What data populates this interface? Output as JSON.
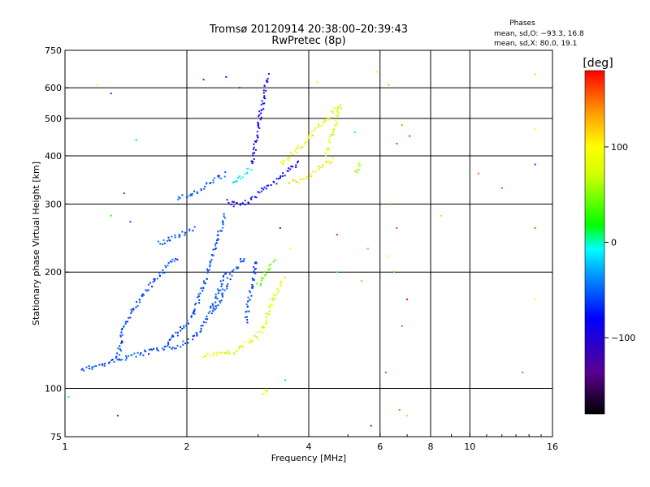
{
  "chart_data": {
    "type": "scatter",
    "title": "Tromsø 20120914 20:38:00–20:39:43",
    "subtitle": "RwPretec (8p)",
    "phase_info": {
      "heading": "Phases",
      "line_o": "mean, sd,O: −93.3, 16.8",
      "line_x": "mean, sd,X:  80.0, 19.1"
    },
    "xlabel": "Frequency [MHz]",
    "ylabel": "Stationary phase Virtual Height [km]",
    "x_scale": "log",
    "y_scale": "log",
    "xlim": [
      1,
      16
    ],
    "ylim": [
      75,
      750
    ],
    "x_ticks": [
      {
        "value": 1,
        "label": "1"
      },
      {
        "value": 2,
        "label": "2"
      },
      {
        "value": 4,
        "label": "4"
      },
      {
        "value": 6,
        "label": "6"
      },
      {
        "value": 8,
        "label": "8"
      },
      {
        "value": 10,
        "label": "10"
      },
      {
        "value": 16,
        "label": "16"
      }
    ],
    "y_ticks": [
      {
        "value": 75,
        "label": "75"
      },
      {
        "value": 100,
        "label": "100"
      },
      {
        "value": 200,
        "label": "200"
      },
      {
        "value": 300,
        "label": "300"
      },
      {
        "value": 400,
        "label": "400"
      },
      {
        "value": 500,
        "label": "500"
      },
      {
        "value": 600,
        "label": "600"
      },
      {
        "value": 750,
        "label": "750"
      }
    ],
    "x_major_grid": [
      2,
      4
    ],
    "x_minor_grid": [
      6,
      8,
      10
    ],
    "y_grid": [
      100,
      200,
      300,
      400,
      500,
      600
    ],
    "colorbar": {
      "label": "[deg]",
      "range": [
        -180,
        180
      ],
      "ticks": [
        {
          "value": 100,
          "label": "100"
        },
        {
          "value": 0,
          "label": "0"
        },
        {
          "value": -100,
          "label": "−100"
        }
      ]
    },
    "traces": [
      {
        "points": [
          [
            1.1,
            112
          ],
          [
            1.2,
            114
          ],
          [
            1.3,
            117
          ],
          [
            1.4,
            120
          ],
          [
            1.5,
            122
          ],
          [
            1.6,
            124
          ],
          [
            1.7,
            126
          ],
          [
            1.8,
            127
          ],
          [
            1.9,
            129
          ],
          [
            2.0,
            132
          ],
          [
            2.1,
            137
          ],
          [
            2.2,
            145
          ],
          [
            2.3,
            160
          ],
          [
            2.4,
            180
          ],
          [
            2.5,
            200
          ]
        ],
        "phase": -95
      },
      {
        "points": [
          [
            1.35,
            120
          ],
          [
            1.4,
            145
          ],
          [
            1.5,
            165
          ],
          [
            1.6,
            180
          ],
          [
            1.7,
            195
          ],
          [
            1.8,
            210
          ],
          [
            1.9,
            220
          ]
        ],
        "phase": -95
      },
      {
        "points": [
          [
            1.8,
            130
          ],
          [
            1.9,
            140
          ],
          [
            2.0,
            148
          ],
          [
            2.1,
            160
          ],
          [
            2.2,
            185
          ],
          [
            2.3,
            215
          ],
          [
            2.4,
            250
          ],
          [
            2.5,
            285
          ]
        ],
        "phase": -95
      },
      {
        "points": [
          [
            2.3,
            160
          ],
          [
            2.4,
            165
          ],
          [
            2.5,
            185
          ],
          [
            2.6,
            200
          ],
          [
            2.7,
            210
          ],
          [
            2.8,
            220
          ]
        ],
        "phase": -95
      },
      {
        "points": [
          [
            2.8,
            150
          ],
          [
            2.85,
            170
          ],
          [
            2.9,
            185
          ],
          [
            2.95,
            205
          ],
          [
            3.0,
            215
          ]
        ],
        "phase": -95
      },
      {
        "points": [
          [
            1.7,
            238
          ],
          [
            1.8,
            242
          ],
          [
            1.9,
            248
          ],
          [
            2.0,
            255
          ],
          [
            2.1,
            262
          ]
        ],
        "phase": -95
      },
      {
        "points": [
          [
            1.9,
            310
          ],
          [
            2.0,
            315
          ],
          [
            2.1,
            322
          ],
          [
            2.2,
            330
          ],
          [
            2.3,
            340
          ],
          [
            2.4,
            350
          ],
          [
            2.5,
            360
          ]
        ],
        "phase": -90
      },
      {
        "points": [
          [
            2.5,
            305
          ],
          [
            2.6,
            300
          ],
          [
            2.7,
            298
          ],
          [
            2.8,
            302
          ],
          [
            2.9,
            310
          ],
          [
            3.0,
            320
          ],
          [
            3.2,
            335
          ],
          [
            3.4,
            350
          ],
          [
            3.6,
            370
          ],
          [
            3.8,
            390
          ]
        ],
        "phase": -115
      },
      {
        "points": [
          [
            2.9,
            380
          ],
          [
            2.95,
            420
          ],
          [
            3.0,
            470
          ],
          [
            3.05,
            520
          ],
          [
            3.1,
            570
          ],
          [
            3.15,
            620
          ],
          [
            3.2,
            650
          ]
        ],
        "phase": -120
      },
      {
        "points": [
          [
            2.6,
            340
          ],
          [
            2.7,
            350
          ],
          [
            2.8,
            360
          ],
          [
            2.9,
            375
          ]
        ],
        "phase": -40
      },
      {
        "points": [
          [
            3.4,
            380
          ],
          [
            3.6,
            400
          ],
          [
            3.8,
            420
          ],
          [
            4.0,
            445
          ],
          [
            4.2,
            470
          ],
          [
            4.5,
            505
          ],
          [
            4.8,
            540
          ]
        ],
        "phase": 100
      },
      {
        "points": [
          [
            4.4,
            400
          ],
          [
            4.5,
            430
          ],
          [
            4.6,
            460
          ],
          [
            4.7,
            500
          ],
          [
            4.8,
            540
          ]
        ],
        "phase": 95
      },
      {
        "points": [
          [
            3.6,
            340
          ],
          [
            3.8,
            345
          ],
          [
            4.0,
            355
          ],
          [
            4.2,
            365
          ],
          [
            4.4,
            380
          ],
          [
            4.6,
            395
          ]
        ],
        "phase": 110
      },
      {
        "points": [
          [
            5.2,
            360
          ],
          [
            5.3,
            370
          ],
          [
            5.4,
            385
          ]
        ],
        "phase": 80
      },
      {
        "points": [
          [
            2.2,
            122
          ],
          [
            2.4,
            123
          ],
          [
            2.6,
            125
          ],
          [
            2.8,
            130
          ],
          [
            3.0,
            137
          ],
          [
            3.1,
            145
          ],
          [
            3.2,
            160
          ],
          [
            3.3,
            175
          ],
          [
            3.4,
            185
          ],
          [
            3.5,
            195
          ]
        ],
        "phase": 95
      },
      {
        "points": [
          [
            3.0,
            185
          ],
          [
            3.1,
            195
          ],
          [
            3.2,
            205
          ],
          [
            3.3,
            215
          ]
        ],
        "phase": 60
      },
      {
        "points": [
          [
            3.1,
            97
          ],
          [
            3.15,
            99
          ],
          [
            3.2,
            100
          ]
        ],
        "phase": 100
      }
    ],
    "scatter": [
      {
        "x": 1.2,
        "y": 610,
        "phase": 100
      },
      {
        "x": 1.3,
        "y": 580,
        "phase": -100
      },
      {
        "x": 1.5,
        "y": 440,
        "phase": 20
      },
      {
        "x": 1.4,
        "y": 320,
        "phase": -90
      },
      {
        "x": 1.3,
        "y": 280,
        "phase": 40
      },
      {
        "x": 1.45,
        "y": 270,
        "phase": -100
      },
      {
        "x": 2.2,
        "y": 630,
        "phase": -100
      },
      {
        "x": 2.5,
        "y": 640,
        "phase": -110
      },
      {
        "x": 2.7,
        "y": 600,
        "phase": -100
      },
      {
        "x": 3.4,
        "y": 260,
        "phase": -100
      },
      {
        "x": 3.6,
        "y": 230,
        "phase": 100
      },
      {
        "x": 4.2,
        "y": 620,
        "phase": 110
      },
      {
        "x": 5.9,
        "y": 660,
        "phase": 110
      },
      {
        "x": 6.3,
        "y": 610,
        "phase": 130
      },
      {
        "x": 6.8,
        "y": 480,
        "phase": 140
      },
      {
        "x": 7.1,
        "y": 450,
        "phase": 170
      },
      {
        "x": 6.6,
        "y": 430,
        "phase": 160
      },
      {
        "x": 6.4,
        "y": 300,
        "phase": 150
      },
      {
        "x": 6.6,
        "y": 260,
        "phase": 160
      },
      {
        "x": 6.3,
        "y": 220,
        "phase": 100
      },
      {
        "x": 6.5,
        "y": 200,
        "phase": 30
      },
      {
        "x": 7.0,
        "y": 170,
        "phase": 180
      },
      {
        "x": 6.8,
        "y": 145,
        "phase": 150
      },
      {
        "x": 6.2,
        "y": 110,
        "phase": 160
      },
      {
        "x": 6.7,
        "y": 88,
        "phase": 150
      },
      {
        "x": 7.0,
        "y": 85,
        "phase": 120
      },
      {
        "x": 8.5,
        "y": 280,
        "phase": 120
      },
      {
        "x": 10.5,
        "y": 360,
        "phase": 150
      },
      {
        "x": 12,
        "y": 330,
        "phase": 160
      },
      {
        "x": 14.5,
        "y": 650,
        "phase": 120
      },
      {
        "x": 14.5,
        "y": 470,
        "phase": 100
      },
      {
        "x": 14.5,
        "y": 380,
        "phase": -100
      },
      {
        "x": 14.5,
        "y": 260,
        "phase": 150
      },
      {
        "x": 14.5,
        "y": 170,
        "phase": 100
      },
      {
        "x": 13.5,
        "y": 110,
        "phase": 150
      },
      {
        "x": 4.7,
        "y": 250,
        "phase": 170
      },
      {
        "x": 5.7,
        "y": 80,
        "phase": -100
      },
      {
        "x": 3.5,
        "y": 105,
        "phase": -60
      },
      {
        "x": 1.35,
        "y": 85,
        "phase": -100
      },
      {
        "x": 1.02,
        "y": 95,
        "phase": -20
      },
      {
        "x": 5.2,
        "y": 460,
        "phase": -30
      },
      {
        "x": 4.7,
        "y": 200,
        "phase": -30
      },
      {
        "x": 5.6,
        "y": 230,
        "phase": 50
      },
      {
        "x": 5.4,
        "y": 190,
        "phase": 60
      }
    ]
  }
}
